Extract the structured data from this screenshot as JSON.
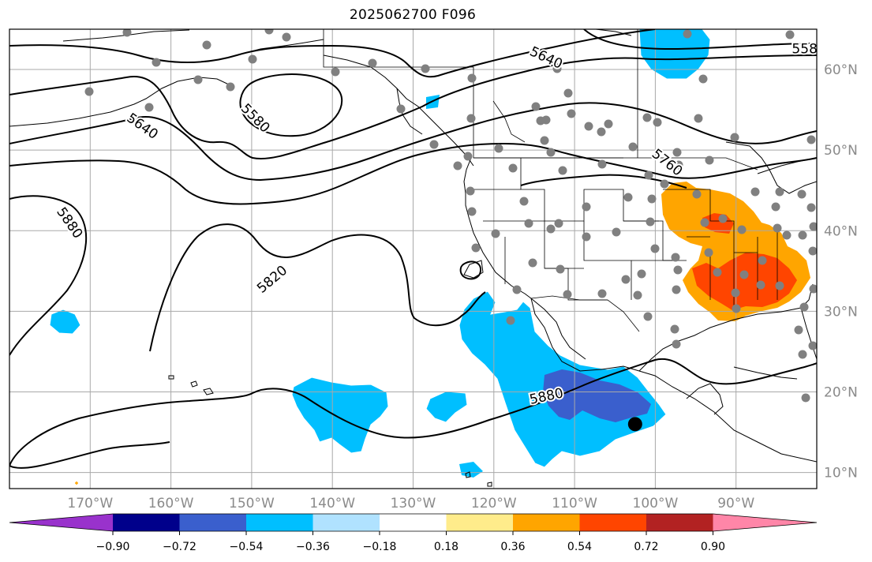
{
  "title": "2025062700 F096",
  "map": {
    "lon_range": [
      -180,
      -80
    ],
    "lat_range": [
      8,
      65
    ],
    "lon_ticks": [
      {
        "value": -170,
        "label": "170°W"
      },
      {
        "value": -160,
        "label": "160°W"
      },
      {
        "value": -150,
        "label": "150°W"
      },
      {
        "value": -140,
        "label": "140°W"
      },
      {
        "value": -130,
        "label": "130°W"
      },
      {
        "value": -120,
        "label": "120°W"
      },
      {
        "value": -110,
        "label": "110°W"
      },
      {
        "value": -100,
        "label": "100°W"
      },
      {
        "value": -90,
        "label": "90°W"
      }
    ],
    "lat_ticks": [
      {
        "value": 10,
        "label": "10°N"
      },
      {
        "value": 20,
        "label": "20°N"
      },
      {
        "value": 30,
        "label": "30°N"
      },
      {
        "value": 40,
        "label": "40°N"
      },
      {
        "value": 50,
        "label": "50°N"
      },
      {
        "value": 60,
        "label": "60°N"
      }
    ],
    "contour_labels": [
      {
        "text": "5580",
        "lon": -149.5,
        "lat": 54.0,
        "angle": 45
      },
      {
        "text": "5640",
        "lon": -163.5,
        "lat": 53.0,
        "angle": 35
      },
      {
        "text": "5640",
        "lon": -113.5,
        "lat": 61.5,
        "angle": 25
      },
      {
        "text": "558",
        "lon": -81.5,
        "lat": 62.6,
        "angle": 0
      },
      {
        "text": "5760",
        "lon": -98.5,
        "lat": 48.5,
        "angle": 38
      },
      {
        "text": "5880",
        "lon": -172.5,
        "lat": 41.0,
        "angle": 55
      },
      {
        "text": "5820",
        "lon": -147.5,
        "lat": 34.0,
        "angle": -40
      },
      {
        "text": "5880",
        "lon": -113.5,
        "lat": 19.5,
        "angle": -12
      }
    ],
    "station_marker": {
      "lon": -102.5,
      "lat": 16.0,
      "color": "#000000"
    }
  },
  "colorbar": {
    "colors": [
      "#9932cc",
      "#00008b",
      "#3a5fcd",
      "#00bfff",
      "#b0e2ff",
      "#ffffff",
      "#ffec8b",
      "#ffa500",
      "#ff4500",
      "#b22222",
      "#ff86a8"
    ],
    "ticks": [
      "−0.90",
      "−0.72",
      "−0.54",
      "−0.36",
      "−0.18",
      "0.18",
      "0.36",
      "0.54",
      "0.72",
      "0.90"
    ]
  },
  "anomaly_regions": [
    {
      "level": "−0.36 to −0.54",
      "color": "#00bfff",
      "area": "Gulf of California / Eastern Pacific"
    },
    {
      "level": "−0.54 to −0.72",
      "color": "#3a5fcd",
      "area": "Off southwest Mexico"
    },
    {
      "level": "0.36 to 0.54",
      "color": "#ffa500",
      "area": "Central & Southern US"
    },
    {
      "level": "0.54 to 0.72",
      "color": "#ff4500",
      "area": "Lower Mississippi Valley"
    }
  ]
}
